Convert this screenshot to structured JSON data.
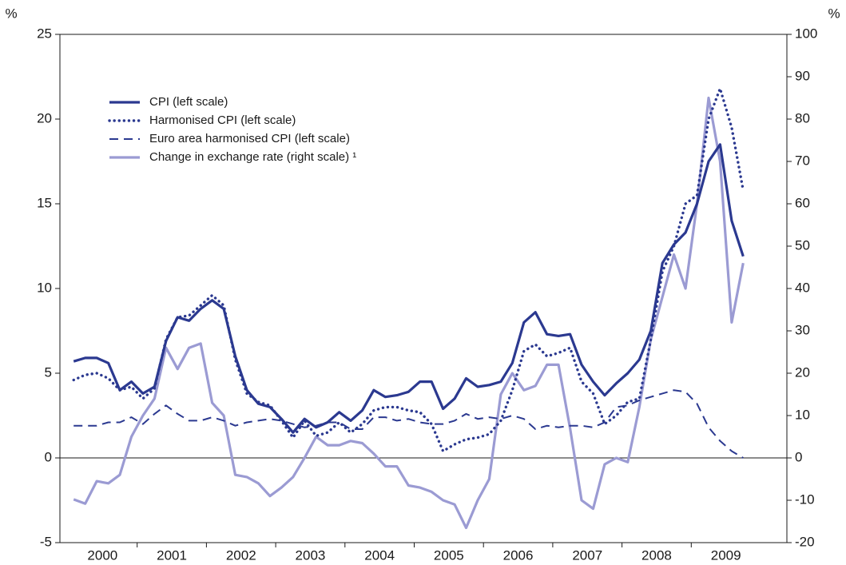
{
  "chart_data": {
    "type": "line",
    "ylabel": "%",
    "y2label": "%",
    "ylim": [
      -5,
      25
    ],
    "yticks": [
      -5,
      0,
      5,
      10,
      15,
      20,
      25
    ],
    "y2lim": [
      -20,
      100
    ],
    "y2ticks": [
      -20,
      -10,
      0,
      10,
      20,
      30,
      40,
      50,
      60,
      70,
      80,
      90,
      100
    ],
    "categories": [
      null,
      null,
      null,
      "2000",
      null,
      null,
      null,
      null,
      null,
      "2001",
      null,
      null,
      null,
      null,
      null,
      "2002",
      null,
      null,
      null,
      null,
      null,
      "2003",
      null,
      null,
      null,
      null,
      null,
      "2004",
      null,
      null,
      null,
      null,
      null,
      "2005",
      null,
      null,
      null,
      null,
      null,
      "2006",
      null,
      null,
      null,
      null,
      null,
      "2007",
      null,
      null,
      null,
      null,
      null,
      "2008",
      null,
      null,
      null,
      null,
      null,
      "2009",
      null,
      null
    ],
    "series": [
      {
        "name": "CPI (left scale)",
        "color": "#2b3990",
        "style": "solid",
        "values": [
          5.7,
          5.9,
          5.9,
          5.6,
          4.0,
          4.5,
          3.8,
          4.2,
          6.9,
          8.3,
          8.1,
          8.8,
          9.3,
          8.8,
          6.0,
          4.0,
          3.2,
          3.0,
          2.3,
          1.5,
          2.3,
          1.8,
          2.1,
          2.7,
          2.2,
          2.8,
          4.0,
          3.6,
          3.7,
          3.9,
          4.5,
          4.5,
          2.9,
          3.5,
          4.7,
          4.2,
          4.3,
          4.5,
          5.6,
          8.0,
          8.6,
          7.3,
          7.2,
          7.3,
          5.5,
          4.5,
          3.7,
          4.4,
          5.0,
          5.8,
          7.5,
          11.5,
          12.6,
          13.3,
          15.0,
          17.5,
          18.5,
          14.0,
          11.9,
          null
        ]
      },
      {
        "name": "Harmonised CPI (left scale)",
        "color": "#2b3990",
        "style": "dotted",
        "values": [
          4.6,
          4.9,
          5.0,
          4.7,
          4.0,
          4.2,
          3.5,
          4.1,
          7.0,
          8.3,
          8.4,
          9.0,
          9.6,
          9.0,
          5.8,
          3.8,
          3.3,
          3.1,
          2.2,
          1.2,
          2.2,
          1.3,
          1.5,
          2.1,
          1.5,
          2.0,
          2.8,
          3.0,
          3.0,
          2.8,
          2.7,
          2.0,
          0.4,
          0.8,
          1.1,
          1.2,
          1.4,
          2.2,
          4.0,
          6.3,
          6.7,
          6.0,
          6.2,
          6.5,
          4.5,
          3.8,
          2.0,
          2.5,
          3.3,
          3.5,
          7.0,
          11.0,
          12.5,
          15.0,
          15.5,
          20.0,
          21.8,
          19.5,
          15.8,
          null
        ]
      },
      {
        "name": "Euro area harmonised CPI (left scale)",
        "color": "#2b3990",
        "style": "dashed",
        "values": [
          1.9,
          1.9,
          1.9,
          2.1,
          2.1,
          2.4,
          2.0,
          2.6,
          3.1,
          2.6,
          2.2,
          2.2,
          2.4,
          2.2,
          1.9,
          2.1,
          2.2,
          2.3,
          2.2,
          2.0,
          1.8,
          1.9,
          2.1,
          2.1,
          1.7,
          1.7,
          2.4,
          2.4,
          2.2,
          2.3,
          2.1,
          2.0,
          2.0,
          2.2,
          2.6,
          2.3,
          2.4,
          2.3,
          2.5,
          2.3,
          1.7,
          1.9,
          1.8,
          1.9,
          1.9,
          1.8,
          2.1,
          3.0,
          3.1,
          3.4,
          3.6,
          3.8,
          4.0,
          3.9,
          3.2,
          1.8,
          1.0,
          0.4,
          0.0,
          null
        ]
      },
      {
        "name": "Change in exchange rate (right scale) ¹",
        "color": "#9b9bd3",
        "style": "solid",
        "axis": "y2",
        "values": [
          -9.8,
          -10.8,
          -5.5,
          -6,
          -4,
          5,
          10,
          14,
          26,
          21,
          26,
          27,
          13,
          10,
          -4,
          -4.5,
          -6,
          -9,
          -7,
          -4.5,
          0,
          5,
          3,
          3,
          4,
          3.5,
          1,
          -2,
          -2,
          -6.5,
          -7,
          -8,
          -10,
          -11,
          -16.5,
          -10,
          -5,
          15,
          20,
          16,
          17,
          22,
          22,
          7,
          -10,
          -12,
          -1.5,
          0,
          -1,
          12,
          28,
          38,
          48,
          40,
          60,
          85,
          70,
          32,
          46,
          null
        ]
      }
    ]
  }
}
